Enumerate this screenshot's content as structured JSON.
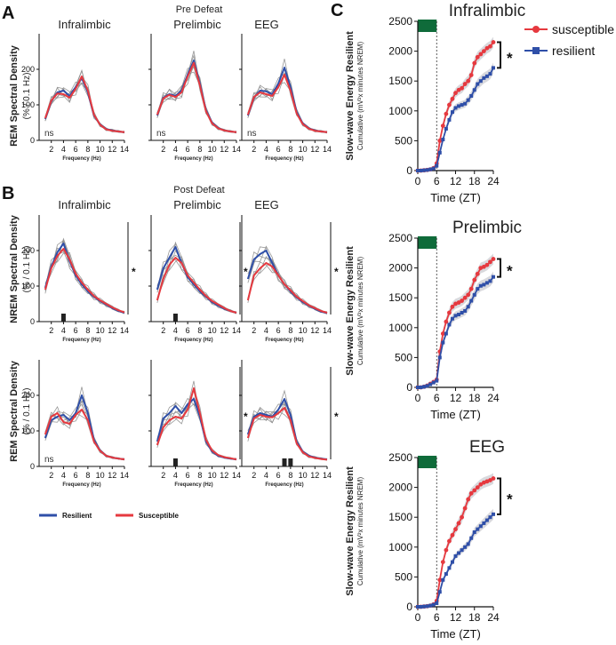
{
  "panel_labels": {
    "a": "A",
    "b": "B",
    "c": "C"
  },
  "section_titles": {
    "pre": "Pre Defeat",
    "post": "Post Defeat"
  },
  "region_titles": [
    "Infralimbic",
    "Prelimbic",
    "EEG"
  ],
  "y_labels": {
    "rem": "REM Spectral Density",
    "nrem": "NREM Spectral Density",
    "unit": "(% / 0.1 Hz)",
    "swe": "Slow-wave Energy Resilient",
    "swe_unit": "Cumulative  (mV²x minutes NREM)"
  },
  "x_labels": {
    "freq": "Frequency (Hz)",
    "time": "Time (ZT)"
  },
  "annotations": {
    "ns": "ns",
    "star": "*"
  },
  "legend_ab": {
    "resilient": "Resilient",
    "susceptible": "Susceptible"
  },
  "legend_c": {
    "susceptible": "susceptible",
    "resilient": "resilient"
  },
  "colors": {
    "resilient": "#2f4fa8",
    "susceptible": "#e6393f",
    "individual": "#8c8c8c",
    "dark_phase": "#0f6b3a",
    "band": "#cfcfd4"
  },
  "chart_data": [
    {
      "type": "line",
      "id": "A-infralimbic",
      "row": "REM pre defeat",
      "title": "Infralimbic",
      "xlabel": "Frequency (Hz)",
      "ylabel": "REM Spectral Density (% / 0.1 Hz)",
      "xlim": [
        0,
        14
      ],
      "ylim": [
        0,
        300
      ],
      "xticks": [
        2,
        4,
        6,
        8,
        10,
        12,
        14
      ],
      "yticks": [
        0,
        100,
        200
      ],
      "x": [
        1,
        2,
        3,
        4,
        5,
        6,
        7,
        8,
        9,
        10,
        11,
        12,
        13,
        14
      ],
      "series": [
        {
          "name": "Resilient",
          "values": [
            60,
            110,
            135,
            140,
            125,
            150,
            175,
            135,
            70,
            45,
            32,
            28,
            25,
            23
          ]
        },
        {
          "name": "Susceptible",
          "values": [
            62,
            112,
            132,
            130,
            120,
            145,
            180,
            140,
            72,
            44,
            31,
            27,
            25,
            23
          ]
        }
      ],
      "annotation": "ns",
      "marker_bins": []
    },
    {
      "type": "line",
      "id": "A-prelimbic",
      "row": "REM pre defeat",
      "title": "Prelimbic",
      "xlabel": "Frequency (Hz)",
      "xlim": [
        0,
        14
      ],
      "ylim": [
        0,
        300
      ],
      "xticks": [
        2,
        4,
        6,
        8,
        10,
        12,
        14
      ],
      "yticks": [
        0,
        100,
        200
      ],
      "x": [
        1,
        2,
        3,
        4,
        5,
        6,
        7,
        8,
        9,
        10,
        11,
        12,
        13,
        14
      ],
      "series": [
        {
          "name": "Resilient",
          "values": [
            70,
            120,
            130,
            125,
            140,
            185,
            225,
            160,
            85,
            50,
            35,
            28,
            25,
            23
          ]
        },
        {
          "name": "Susceptible",
          "values": [
            72,
            118,
            128,
            122,
            135,
            180,
            218,
            155,
            82,
            48,
            34,
            28,
            25,
            23
          ]
        }
      ],
      "annotation": "ns",
      "marker_bins": []
    },
    {
      "type": "line",
      "id": "A-eeg",
      "row": "REM pre defeat",
      "title": "EEG",
      "xlabel": "Frequency (Hz)",
      "xlim": [
        0,
        14
      ],
      "ylim": [
        0,
        300
      ],
      "xticks": [
        2,
        4,
        6,
        8,
        10,
        12,
        14
      ],
      "yticks": [
        0,
        100,
        200
      ],
      "x": [
        1,
        2,
        3,
        4,
        5,
        6,
        7,
        8,
        9,
        10,
        11,
        12,
        13,
        14
      ],
      "series": [
        {
          "name": "Resilient",
          "values": [
            70,
            120,
            140,
            138,
            130,
            160,
            205,
            150,
            80,
            48,
            34,
            28,
            25,
            23
          ]
        },
        {
          "name": "Susceptible",
          "values": [
            72,
            122,
            135,
            130,
            125,
            150,
            185,
            140,
            76,
            46,
            33,
            27,
            25,
            23
          ]
        }
      ],
      "annotation": "ns",
      "marker_bins": []
    },
    {
      "type": "line",
      "id": "B-nrem-infralimbic",
      "row": "NREM post defeat",
      "title": "Infralimbic",
      "xlabel": "Frequency (Hz)",
      "ylabel": "NREM Spectral Density (% / 0.1 Hz)",
      "xlim": [
        0,
        14
      ],
      "ylim": [
        0,
        300
      ],
      "xticks": [
        2,
        4,
        6,
        8,
        10,
        12,
        14
      ],
      "yticks": [
        0,
        100,
        200
      ],
      "x": [
        1,
        2,
        3,
        4,
        5,
        6,
        7,
        8,
        9,
        10,
        11,
        12,
        13,
        14
      ],
      "series": [
        {
          "name": "Resilient",
          "values": [
            95,
            155,
            195,
            220,
            170,
            130,
            105,
            85,
            70,
            58,
            48,
            38,
            30,
            25
          ]
        },
        {
          "name": "Susceptible",
          "values": [
            90,
            150,
            185,
            205,
            175,
            135,
            110,
            90,
            72,
            60,
            50,
            40,
            32,
            26
          ]
        }
      ],
      "annotation": "*",
      "marker_bins": [
        4
      ]
    },
    {
      "type": "line",
      "id": "B-nrem-prelimbic",
      "row": "NREM post defeat",
      "title": "Prelimbic",
      "xlabel": "Frequency (Hz)",
      "xlim": [
        0,
        14
      ],
      "ylim": [
        0,
        300
      ],
      "xticks": [
        2,
        4,
        6,
        8,
        10,
        12,
        14
      ],
      "yticks": [
        0,
        100,
        200
      ],
      "x": [
        1,
        2,
        3,
        4,
        5,
        6,
        7,
        8,
        9,
        10,
        11,
        12,
        13,
        14
      ],
      "series": [
        {
          "name": "Resilient",
          "values": [
            90,
            150,
            180,
            210,
            165,
            125,
            105,
            85,
            70,
            55,
            45,
            36,
            30,
            25
          ]
        },
        {
          "name": "Susceptible",
          "values": [
            60,
            120,
            160,
            180,
            165,
            130,
            110,
            90,
            72,
            58,
            48,
            38,
            30,
            25
          ]
        }
      ],
      "annotation": "*",
      "marker_bins": [
        4
      ]
    },
    {
      "type": "line",
      "id": "B-nrem-eeg",
      "row": "NREM post defeat",
      "title": "EEG",
      "xlabel": "Frequency (Hz)",
      "xlim": [
        0,
        14
      ],
      "ylim": [
        0,
        300
      ],
      "xticks": [
        2,
        4,
        6,
        8,
        10,
        12,
        14
      ],
      "yticks": [
        0,
        100,
        200
      ],
      "x": [
        1,
        2,
        3,
        4,
        5,
        6,
        7,
        8,
        9,
        10,
        11,
        12,
        13,
        14
      ],
      "series": [
        {
          "name": "Resilient",
          "values": [
            120,
            175,
            190,
            200,
            165,
            130,
            105,
            85,
            68,
            55,
            45,
            36,
            28,
            24
          ]
        },
        {
          "name": "Susceptible",
          "values": [
            60,
            130,
            150,
            165,
            155,
            130,
            105,
            88,
            70,
            58,
            46,
            38,
            30,
            25
          ]
        }
      ],
      "annotation": "*",
      "marker_bins": []
    },
    {
      "type": "line",
      "id": "B-rem-infralimbic",
      "row": "REM post defeat",
      "title": "Infralimbic",
      "xlabel": "Frequency (Hz)",
      "ylabel": "REM Spectral Density (% / 0.1 Hz)",
      "xlim": [
        0,
        14
      ],
      "ylim": [
        0,
        300
      ],
      "xticks": [
        2,
        4,
        6,
        8,
        10,
        12,
        14
      ],
      "yticks": [
        0,
        100,
        200
      ],
      "x": [
        1,
        2,
        3,
        4,
        5,
        6,
        7,
        8,
        9,
        10,
        11,
        12,
        13,
        14
      ],
      "series": [
        {
          "name": "Resilient",
          "values": [
            80,
            130,
            140,
            145,
            130,
            150,
            200,
            150,
            75,
            45,
            30,
            25,
            22,
            20
          ]
        },
        {
          "name": "Susceptible",
          "values": [
            90,
            140,
            150,
            125,
            120,
            145,
            160,
            130,
            70,
            44,
            30,
            25,
            22,
            20
          ]
        }
      ],
      "annotation": "ns",
      "marker_bins": []
    },
    {
      "type": "line",
      "id": "B-rem-prelimbic",
      "row": "REM post defeat",
      "title": "Prelimbic",
      "xlabel": "Frequency (Hz)",
      "xlim": [
        0,
        14
      ],
      "ylim": [
        0,
        300
      ],
      "xticks": [
        2,
        4,
        6,
        8,
        10,
        12,
        14
      ],
      "yticks": [
        0,
        100,
        200
      ],
      "x": [
        1,
        2,
        3,
        4,
        5,
        6,
        7,
        8,
        9,
        10,
        11,
        12,
        13,
        14
      ],
      "series": [
        {
          "name": "Resilient",
          "values": [
            70,
            135,
            150,
            170,
            150,
            175,
            190,
            140,
            70,
            42,
            30,
            25,
            22,
            20
          ]
        },
        {
          "name": "Susceptible",
          "values": [
            60,
            110,
            130,
            140,
            135,
            160,
            220,
            150,
            75,
            45,
            32,
            26,
            23,
            20
          ]
        }
      ],
      "annotation": "*",
      "marker_bins": [
        4
      ]
    },
    {
      "type": "line",
      "id": "B-rem-eeg",
      "row": "REM post defeat",
      "title": "EEG",
      "xlabel": "Frequency (Hz)",
      "xlim": [
        0,
        14
      ],
      "ylim": [
        0,
        300
      ],
      "xticks": [
        2,
        4,
        6,
        8,
        10,
        12,
        14
      ],
      "yticks": [
        0,
        100,
        200
      ],
      "x": [
        1,
        2,
        3,
        4,
        5,
        6,
        7,
        8,
        9,
        10,
        11,
        12,
        13,
        14
      ],
      "series": [
        {
          "name": "Resilient",
          "values": [
            90,
            140,
            150,
            145,
            140,
            160,
            190,
            145,
            70,
            42,
            30,
            25,
            22,
            20
          ]
        },
        {
          "name": "Susceptible",
          "values": [
            80,
            135,
            145,
            140,
            138,
            150,
            165,
            130,
            65,
            40,
            28,
            24,
            21,
            19
          ]
        }
      ],
      "annotation": "*",
      "marker_bins": [
        7,
        8
      ]
    },
    {
      "type": "line",
      "id": "C-infralimbic",
      "title": "Infralimbic",
      "xlabel": "Time (ZT)",
      "ylabel": "Slow-wave Energy Resilient",
      "xlim": [
        0,
        24
      ],
      "ylim": [
        0,
        2500
      ],
      "xticks": [
        0,
        6,
        12,
        18,
        24
      ],
      "yticks": [
        0,
        500,
        1000,
        1500,
        2000,
        2500
      ],
      "dark_phase_end": 6,
      "x": [
        0,
        1,
        2,
        3,
        4,
        5,
        6,
        7,
        8,
        9,
        10,
        11,
        12,
        13,
        14,
        15,
        16,
        17,
        18,
        19,
        20,
        21,
        22,
        23,
        24
      ],
      "series": [
        {
          "name": "susceptible",
          "values": [
            0,
            0,
            5,
            10,
            20,
            40,
            120,
            500,
            750,
            950,
            1100,
            1200,
            1300,
            1350,
            1380,
            1450,
            1500,
            1600,
            1800,
            1900,
            1950,
            2000,
            2050,
            2080,
            2150
          ]
        },
        {
          "name": "resilient",
          "values": [
            0,
            0,
            5,
            10,
            20,
            35,
            80,
            300,
            520,
            700,
            850,
            980,
            1050,
            1080,
            1100,
            1120,
            1180,
            1250,
            1350,
            1450,
            1500,
            1550,
            1580,
            1620,
            1720
          ]
        }
      ],
      "annotation": "*"
    },
    {
      "type": "line",
      "id": "C-prelimbic",
      "title": "Prelimbic",
      "xlabel": "Time (ZT)",
      "ylabel": "Slow-wave Energy Resilient",
      "xlim": [
        0,
        24
      ],
      "ylim": [
        0,
        2500
      ],
      "xticks": [
        0,
        6,
        12,
        18,
        24
      ],
      "yticks": [
        0,
        500,
        1000,
        1500,
        2000,
        2500
      ],
      "dark_phase_end": 6,
      "x": [
        0,
        1,
        2,
        3,
        4,
        5,
        6,
        7,
        8,
        9,
        10,
        11,
        12,
        13,
        14,
        15,
        16,
        17,
        18,
        19,
        20,
        21,
        22,
        23,
        24
      ],
      "series": [
        {
          "name": "susceptible",
          "values": [
            0,
            0,
            10,
            30,
            60,
            90,
            130,
            600,
            900,
            1100,
            1250,
            1350,
            1400,
            1420,
            1450,
            1500,
            1550,
            1650,
            1800,
            1900,
            2000,
            2020,
            2050,
            2100,
            2150
          ]
        },
        {
          "name": "resilient",
          "values": [
            0,
            0,
            10,
            25,
            50,
            80,
            110,
            500,
            750,
            900,
            1050,
            1150,
            1200,
            1220,
            1250,
            1280,
            1350,
            1450,
            1550,
            1650,
            1700,
            1720,
            1750,
            1780,
            1850
          ]
        }
      ],
      "annotation": "*"
    },
    {
      "type": "line",
      "id": "C-eeg",
      "title": "EEG",
      "xlabel": "Time (ZT)",
      "ylabel": "Slow-wave Energy Resilient",
      "xlim": [
        0,
        24
      ],
      "ylim": [
        0,
        2500
      ],
      "xticks": [
        0,
        6,
        12,
        18,
        24
      ],
      "yticks": [
        0,
        500,
        1000,
        1500,
        2000,
        2500
      ],
      "dark_phase_end": 6,
      "x": [
        0,
        1,
        2,
        3,
        4,
        5,
        6,
        7,
        8,
        9,
        10,
        11,
        12,
        13,
        14,
        15,
        16,
        17,
        18,
        19,
        20,
        21,
        22,
        23,
        24
      ],
      "series": [
        {
          "name": "susceptible",
          "values": [
            0,
            0,
            5,
            10,
            20,
            40,
            100,
            450,
            750,
            950,
            1100,
            1200,
            1300,
            1400,
            1500,
            1650,
            1800,
            1900,
            1950,
            2000,
            2050,
            2080,
            2100,
            2120,
            2150
          ]
        },
        {
          "name": "resilient",
          "values": [
            0,
            0,
            5,
            10,
            20,
            35,
            60,
            250,
            450,
            550,
            650,
            750,
            850,
            900,
            950,
            1000,
            1050,
            1150,
            1250,
            1300,
            1350,
            1400,
            1450,
            1500,
            1550
          ]
        }
      ],
      "annotation": "*"
    }
  ]
}
